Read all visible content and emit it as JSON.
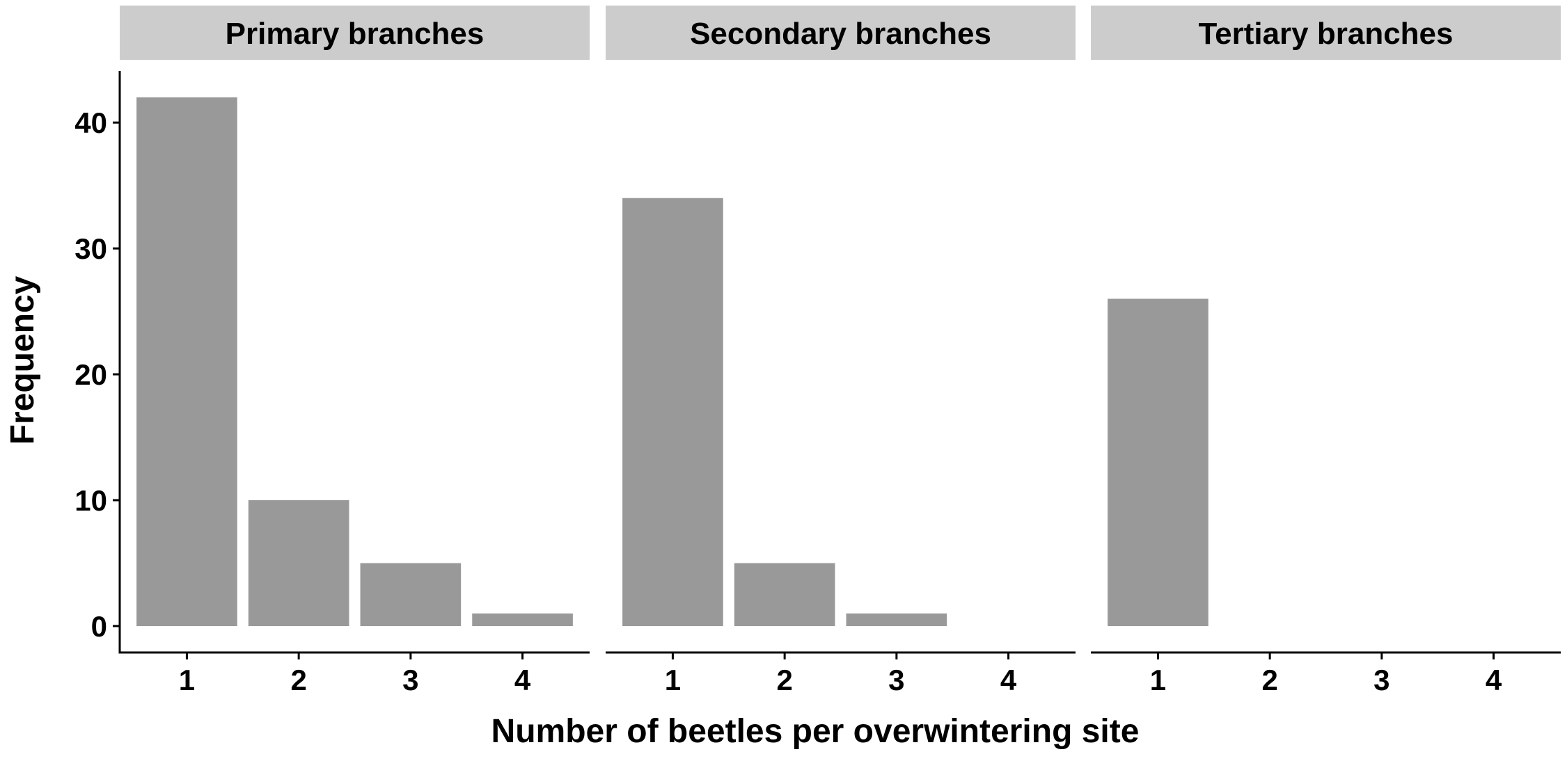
{
  "chart_data": {
    "type": "bar",
    "facets": [
      {
        "title": "Primary branches",
        "categories": [
          1,
          2,
          3,
          4
        ],
        "values": [
          42,
          10,
          5,
          1
        ]
      },
      {
        "title": "Secondary branches",
        "categories": [
          1,
          2,
          3,
          4
        ],
        "values": [
          34,
          5,
          1,
          0
        ]
      },
      {
        "title": "Tertiary branches",
        "categories": [
          1,
          2,
          3,
          4
        ],
        "values": [
          26,
          0,
          0,
          0
        ]
      }
    ],
    "xlabel": "Number of beetles per overwintering site",
    "ylabel": "Frequency",
    "yticks": [
      0,
      10,
      20,
      30,
      40
    ],
    "ylim": [
      -2.1,
      44.1
    ],
    "grid": false,
    "colors": {
      "bar": "#999999",
      "strip": "#cccccc",
      "axis": "#000000"
    }
  }
}
